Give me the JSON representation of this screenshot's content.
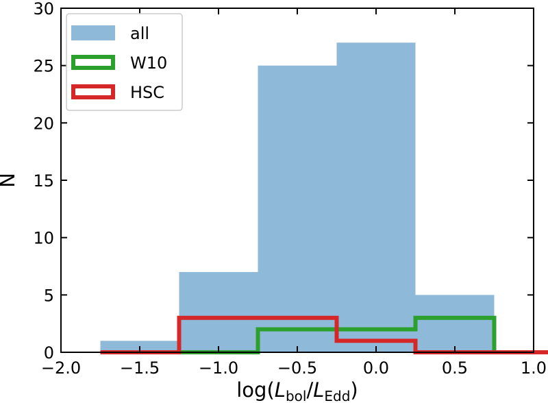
{
  "chart_data": {
    "type": "bar",
    "subtype": "histogram",
    "xlabel": {
      "prefix": "log(",
      "num_var": "L",
      "num_sub": "bol",
      "sep": "/",
      "den_var": "L",
      "den_sub": "Edd",
      "suffix": ")"
    },
    "ylabel": "N",
    "xlim": [
      -2.0,
      1.0
    ],
    "ylim": [
      0,
      30
    ],
    "xticks": [
      -2.0,
      -1.5,
      -1.0,
      -0.5,
      0.0,
      0.5,
      1.0
    ],
    "xtick_labels": [
      "−2.0",
      "−1.5",
      "−1.0",
      "−0.5",
      "0.0",
      "0.5",
      "1.0"
    ],
    "yticks": [
      0,
      5,
      10,
      15,
      20,
      25,
      30
    ],
    "ytick_labels": [
      "0",
      "5",
      "10",
      "15",
      "20",
      "25",
      "30"
    ],
    "bin_edges": [
      -1.75,
      -1.25,
      -0.75,
      -0.25,
      0.25,
      0.75,
      1.25
    ],
    "legend_position": "upper-left",
    "grid": false,
    "series": [
      {
        "name": "all",
        "style": "filled",
        "color": "#8fb9d8",
        "values": [
          1,
          7,
          25,
          27,
          5,
          0
        ]
      },
      {
        "name": "W10",
        "style": "step",
        "color": "#2ca02c",
        "values": [
          0,
          0,
          2,
          2,
          3,
          0
        ]
      },
      {
        "name": "HSC",
        "style": "step",
        "color": "#d62728",
        "values": [
          0,
          3,
          3,
          1,
          0,
          0
        ]
      }
    ]
  }
}
